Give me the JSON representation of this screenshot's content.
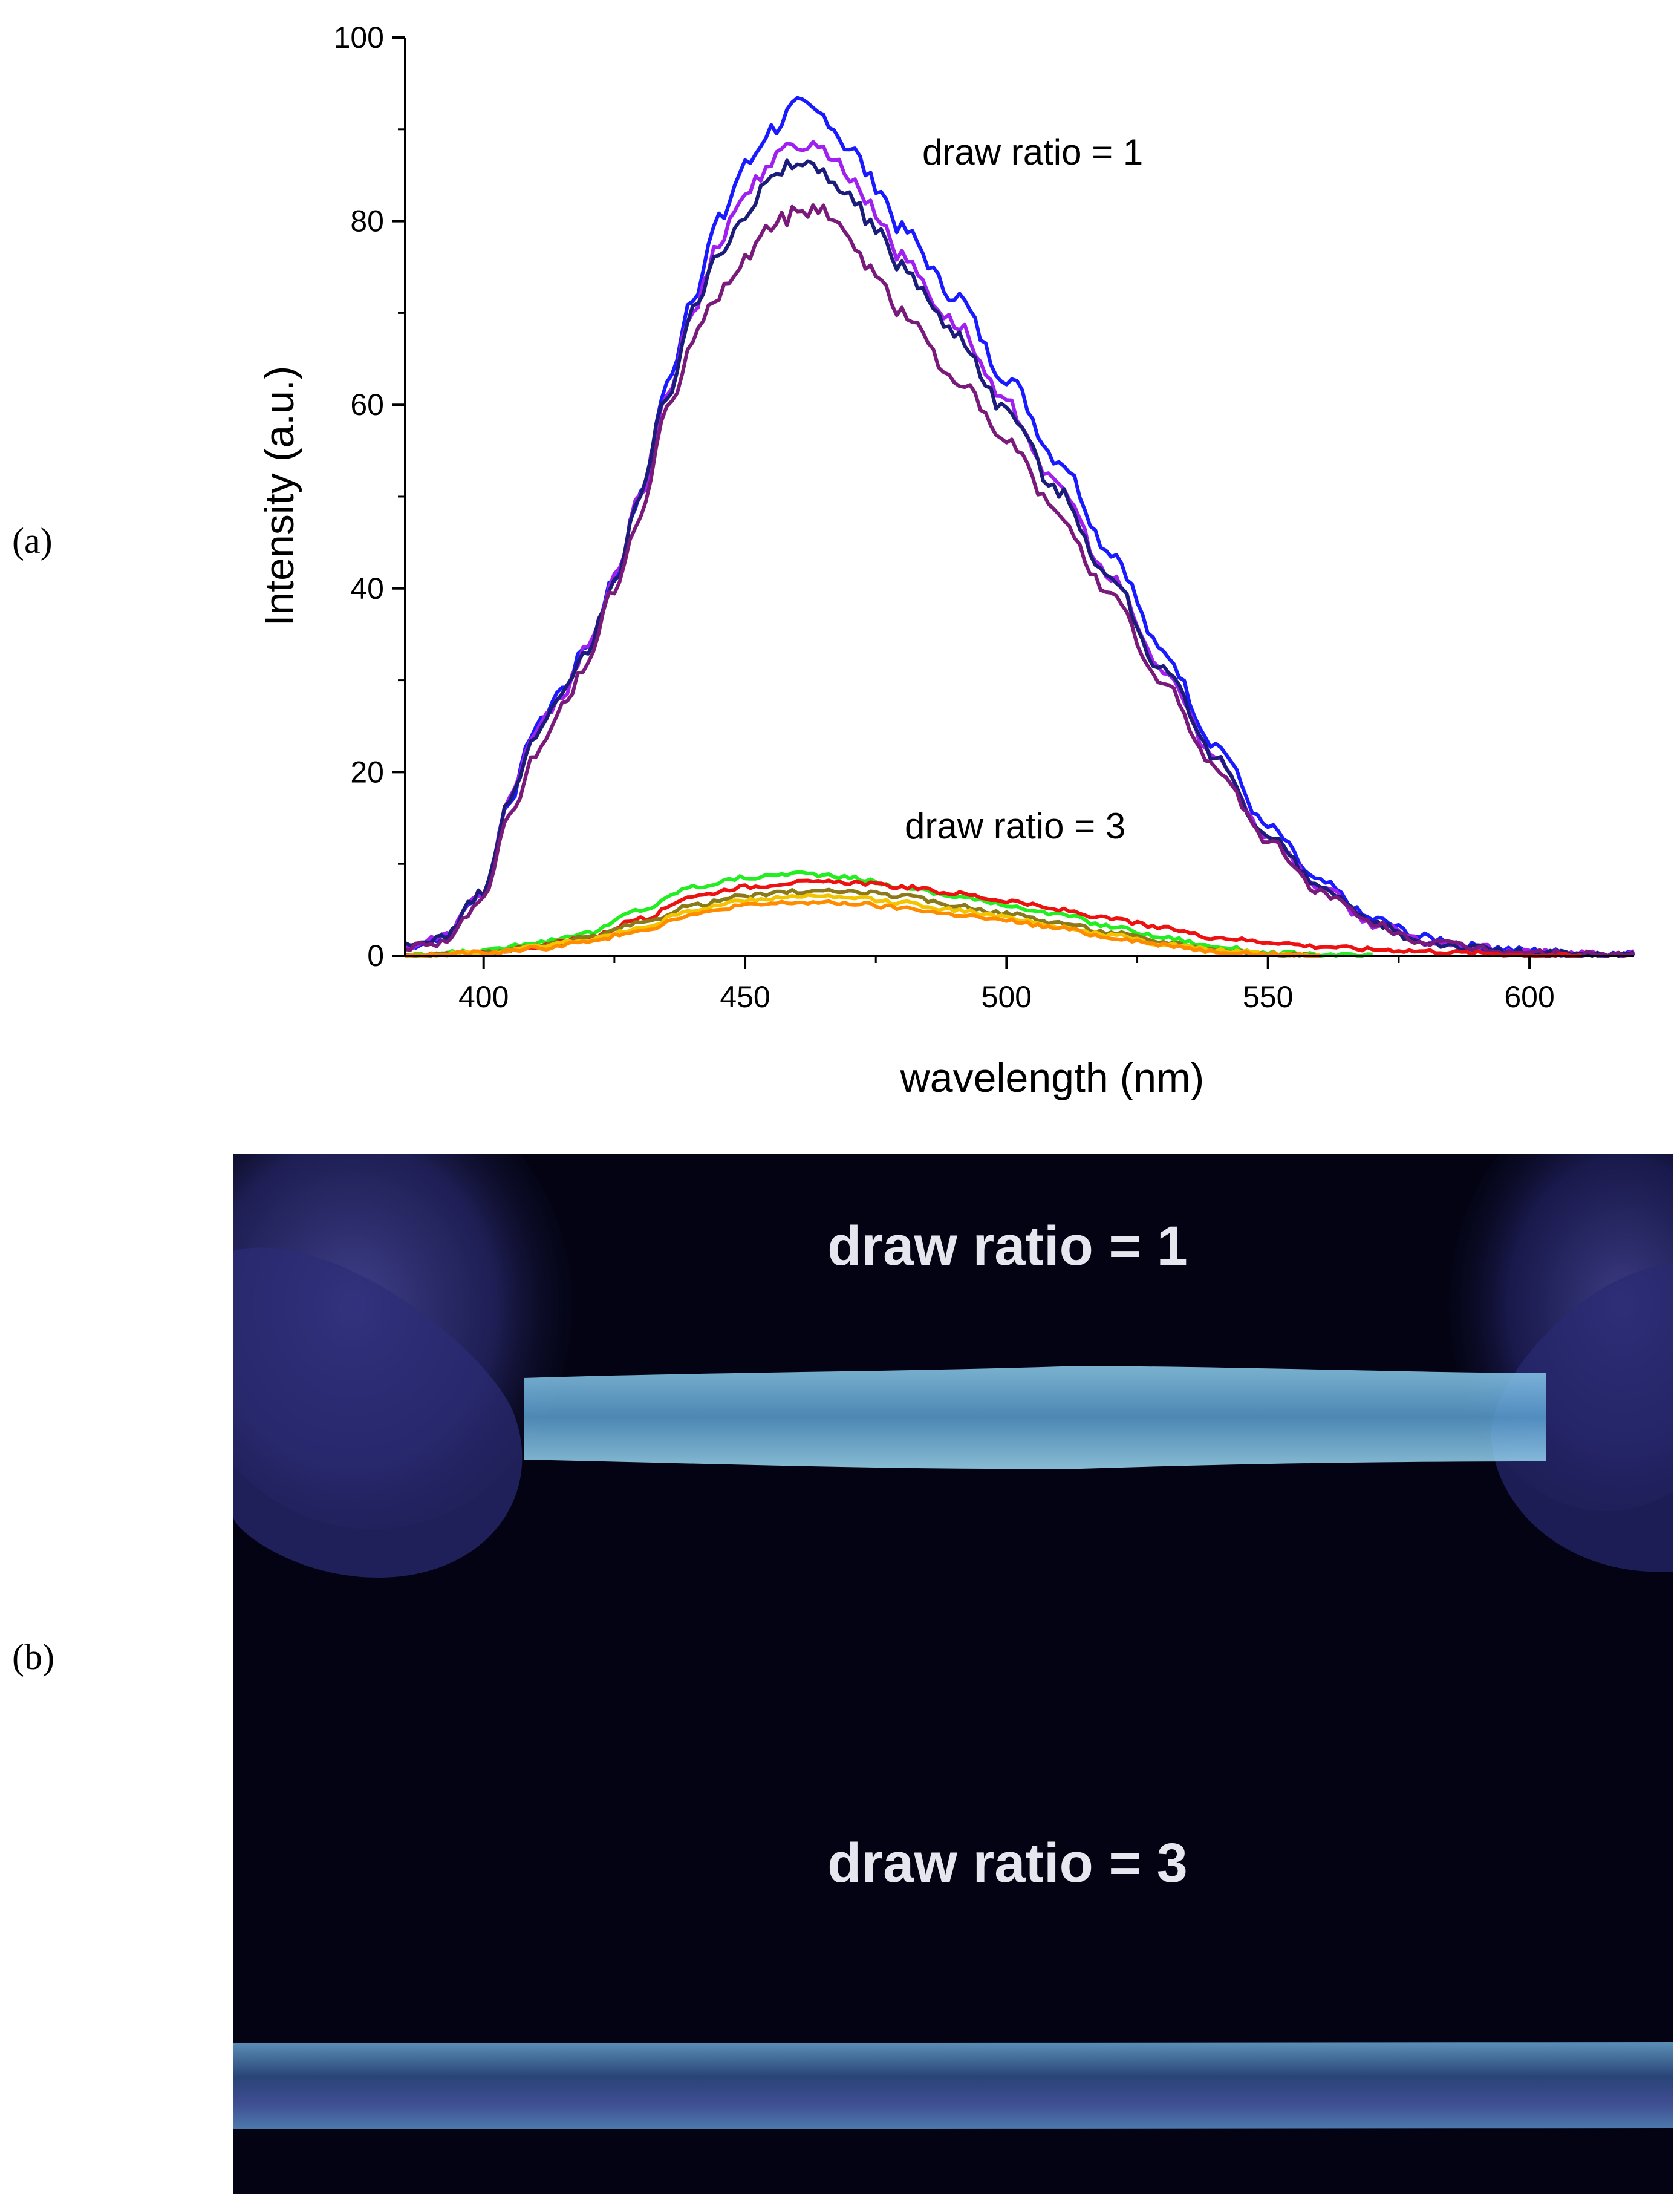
{
  "panel_labels": {
    "a": "(a)",
    "b": "(b)"
  },
  "chart_data": {
    "type": "line",
    "title": "",
    "xlabel": "wavelength (nm)",
    "ylabel": "Intensity (a.u.)",
    "xlim": [
      385,
      620
    ],
    "ylim": [
      0,
      100
    ],
    "xticks": [
      400,
      450,
      500,
      550,
      600
    ],
    "yticks": [
      0,
      20,
      40,
      60,
      80,
      100
    ],
    "grid": false,
    "annotations": [
      {
        "text": "draw ratio = 1",
        "x": 487,
        "y": 87.5
      },
      {
        "text": "draw ratio = 3",
        "x": 484,
        "y": 13.5
      }
    ],
    "series": [
      {
        "name": "draw ratio = 1 (blue)",
        "group": 1,
        "color": "#1a1aff",
        "peak": 92.5,
        "center": 462,
        "x": [
          385,
          392,
          400,
          405,
          410,
          415,
          420,
          425,
          430,
          435,
          440,
          445,
          450,
          455,
          460,
          465,
          470,
          475,
          480,
          490,
          500,
          510,
          520,
          530,
          540,
          550,
          560,
          570,
          580,
          590,
          600,
          610,
          620
        ],
        "values": [
          1,
          2,
          7,
          17,
          25,
          29,
          34,
          41,
          50,
          62,
          72,
          80,
          86,
          90,
          92.5,
          91.5,
          88,
          84,
          79,
          72,
          63,
          54,
          44,
          33,
          23,
          14,
          8,
          4,
          2,
          1,
          0.5,
          0.2,
          0.1
        ]
      },
      {
        "name": "draw ratio = 1 (violet)",
        "group": 1,
        "color": "#a020f0",
        "peak": 89,
        "center": 463,
        "x": [
          385,
          392,
          400,
          405,
          410,
          415,
          420,
          425,
          430,
          435,
          440,
          445,
          450,
          455,
          460,
          465,
          470,
          475,
          480,
          490,
          500,
          510,
          520,
          530,
          540,
          550,
          560,
          570,
          580,
          590,
          600,
          610,
          620
        ],
        "values": [
          1,
          2,
          7,
          17,
          24.5,
          28.5,
          33.5,
          41,
          50,
          61,
          70,
          78,
          83,
          86.5,
          88.5,
          88,
          85,
          81,
          76,
          69,
          60,
          51,
          41,
          31,
          21.5,
          13,
          7.5,
          3.5,
          1.5,
          0.8,
          0.3,
          0.1,
          0.1
        ]
      },
      {
        "name": "draw ratio = 1 (navy)",
        "group": 1,
        "color": "#1c1c7a",
        "peak": 86.5,
        "center": 462,
        "x": [
          385,
          392,
          400,
          405,
          410,
          415,
          420,
          425,
          430,
          435,
          440,
          445,
          450,
          455,
          460,
          465,
          470,
          475,
          480,
          490,
          500,
          510,
          520,
          530,
          540,
          550,
          560,
          570,
          580,
          590,
          600,
          610,
          620
        ],
        "values": [
          1,
          2,
          7,
          17,
          24,
          28.5,
          33.5,
          41,
          50,
          61,
          70,
          77,
          81,
          84.5,
          86.5,
          85.5,
          82.5,
          79,
          75,
          68,
          59.5,
          50.5,
          41,
          31,
          21.5,
          13,
          7.5,
          3.5,
          1.5,
          0.8,
          0.3,
          0.1,
          0.1
        ]
      },
      {
        "name": "draw ratio = 1 (purple)",
        "group": 1,
        "color": "#7a1a7a",
        "peak": 82,
        "center": 461,
        "x": [
          385,
          392,
          400,
          405,
          410,
          415,
          420,
          425,
          430,
          435,
          440,
          445,
          450,
          455,
          460,
          465,
          470,
          475,
          480,
          490,
          500,
          510,
          520,
          530,
          540,
          550,
          560,
          570,
          580,
          590,
          600,
          610,
          620
        ],
        "values": [
          1,
          1.5,
          6,
          15,
          22,
          27,
          32,
          40,
          48,
          59,
          67,
          72,
          76,
          79.5,
          81,
          81.5,
          78,
          74,
          70,
          63,
          56,
          48,
          39,
          29.5,
          20.5,
          12.5,
          7,
          3.5,
          1.5,
          0.8,
          0.3,
          0.1,
          0.1
        ]
      },
      {
        "name": "draw ratio = 3 (green)",
        "group": 3,
        "color": "#22ee22",
        "peak": 9,
        "center": 460,
        "x": [
          385,
          400,
          410,
          420,
          430,
          440,
          450,
          460,
          470,
          480,
          490,
          500,
          510,
          520,
          530,
          540,
          550,
          560,
          570
        ],
        "values": [
          0,
          0.5,
          1.5,
          2.5,
          5,
          7.5,
          8.5,
          9,
          8.5,
          7.5,
          6.5,
          5.5,
          4.5,
          3.2,
          2,
          1,
          0.3,
          0.1,
          0
        ]
      },
      {
        "name": "draw ratio = 3 (red)",
        "group": 3,
        "color": "#ee1111",
        "peak": 8,
        "center": 468,
        "x": [
          385,
          400,
          410,
          420,
          430,
          440,
          450,
          460,
          470,
          480,
          490,
          500,
          510,
          520,
          530,
          540,
          550,
          560,
          570,
          580,
          590,
          600,
          610
        ],
        "values": [
          0,
          0.3,
          1,
          2,
          4,
          6.5,
          7.5,
          8,
          8,
          7.5,
          6.8,
          6,
          5,
          4,
          3,
          2,
          1.5,
          1,
          0.7,
          0.5,
          0.3,
          0.1,
          0
        ]
      },
      {
        "name": "draw ratio = 3 (olive)",
        "group": 3,
        "color": "#8a7a1a",
        "peak": 7,
        "center": 463,
        "x": [
          385,
          400,
          410,
          420,
          430,
          440,
          450,
          460,
          470,
          480,
          490,
          500,
          510,
          520,
          530,
          540,
          550,
          560
        ],
        "values": [
          0,
          0.3,
          1,
          2,
          3.5,
          5.5,
          6.5,
          7,
          7,
          6.5,
          5.5,
          4.6,
          3.6,
          2.5,
          1.5,
          0.7,
          0.2,
          0
        ]
      },
      {
        "name": "draw ratio = 3 (yellow)",
        "group": 3,
        "color": "#f2c500",
        "peak": 6.5,
        "center": 462,
        "x": [
          385,
          400,
          410,
          420,
          430,
          440,
          450,
          460,
          470,
          480,
          490,
          500,
          510,
          520,
          530,
          540,
          550,
          560
        ],
        "values": [
          0,
          0.3,
          1,
          1.8,
          3,
          5,
          6,
          6.5,
          6.3,
          5.8,
          5,
          4.2,
          3.2,
          2.2,
          1.3,
          0.6,
          0.2,
          0
        ]
      },
      {
        "name": "draw ratio = 3 (orange)",
        "group": 3,
        "color": "#ff8c00",
        "peak": 5.8,
        "center": 462,
        "x": [
          385,
          400,
          410,
          420,
          430,
          440,
          450,
          460,
          470,
          480,
          490,
          500,
          510,
          520,
          530,
          540,
          550,
          560
        ],
        "values": [
          0,
          0.3,
          0.8,
          1.5,
          2.8,
          4.5,
          5.5,
          5.8,
          5.7,
          5.2,
          4.5,
          3.8,
          3,
          2,
          1.2,
          0.5,
          0.2,
          0
        ]
      }
    ]
  },
  "photo": {
    "label_top": "draw ratio = 1",
    "label_bottom": "draw ratio = 3"
  }
}
